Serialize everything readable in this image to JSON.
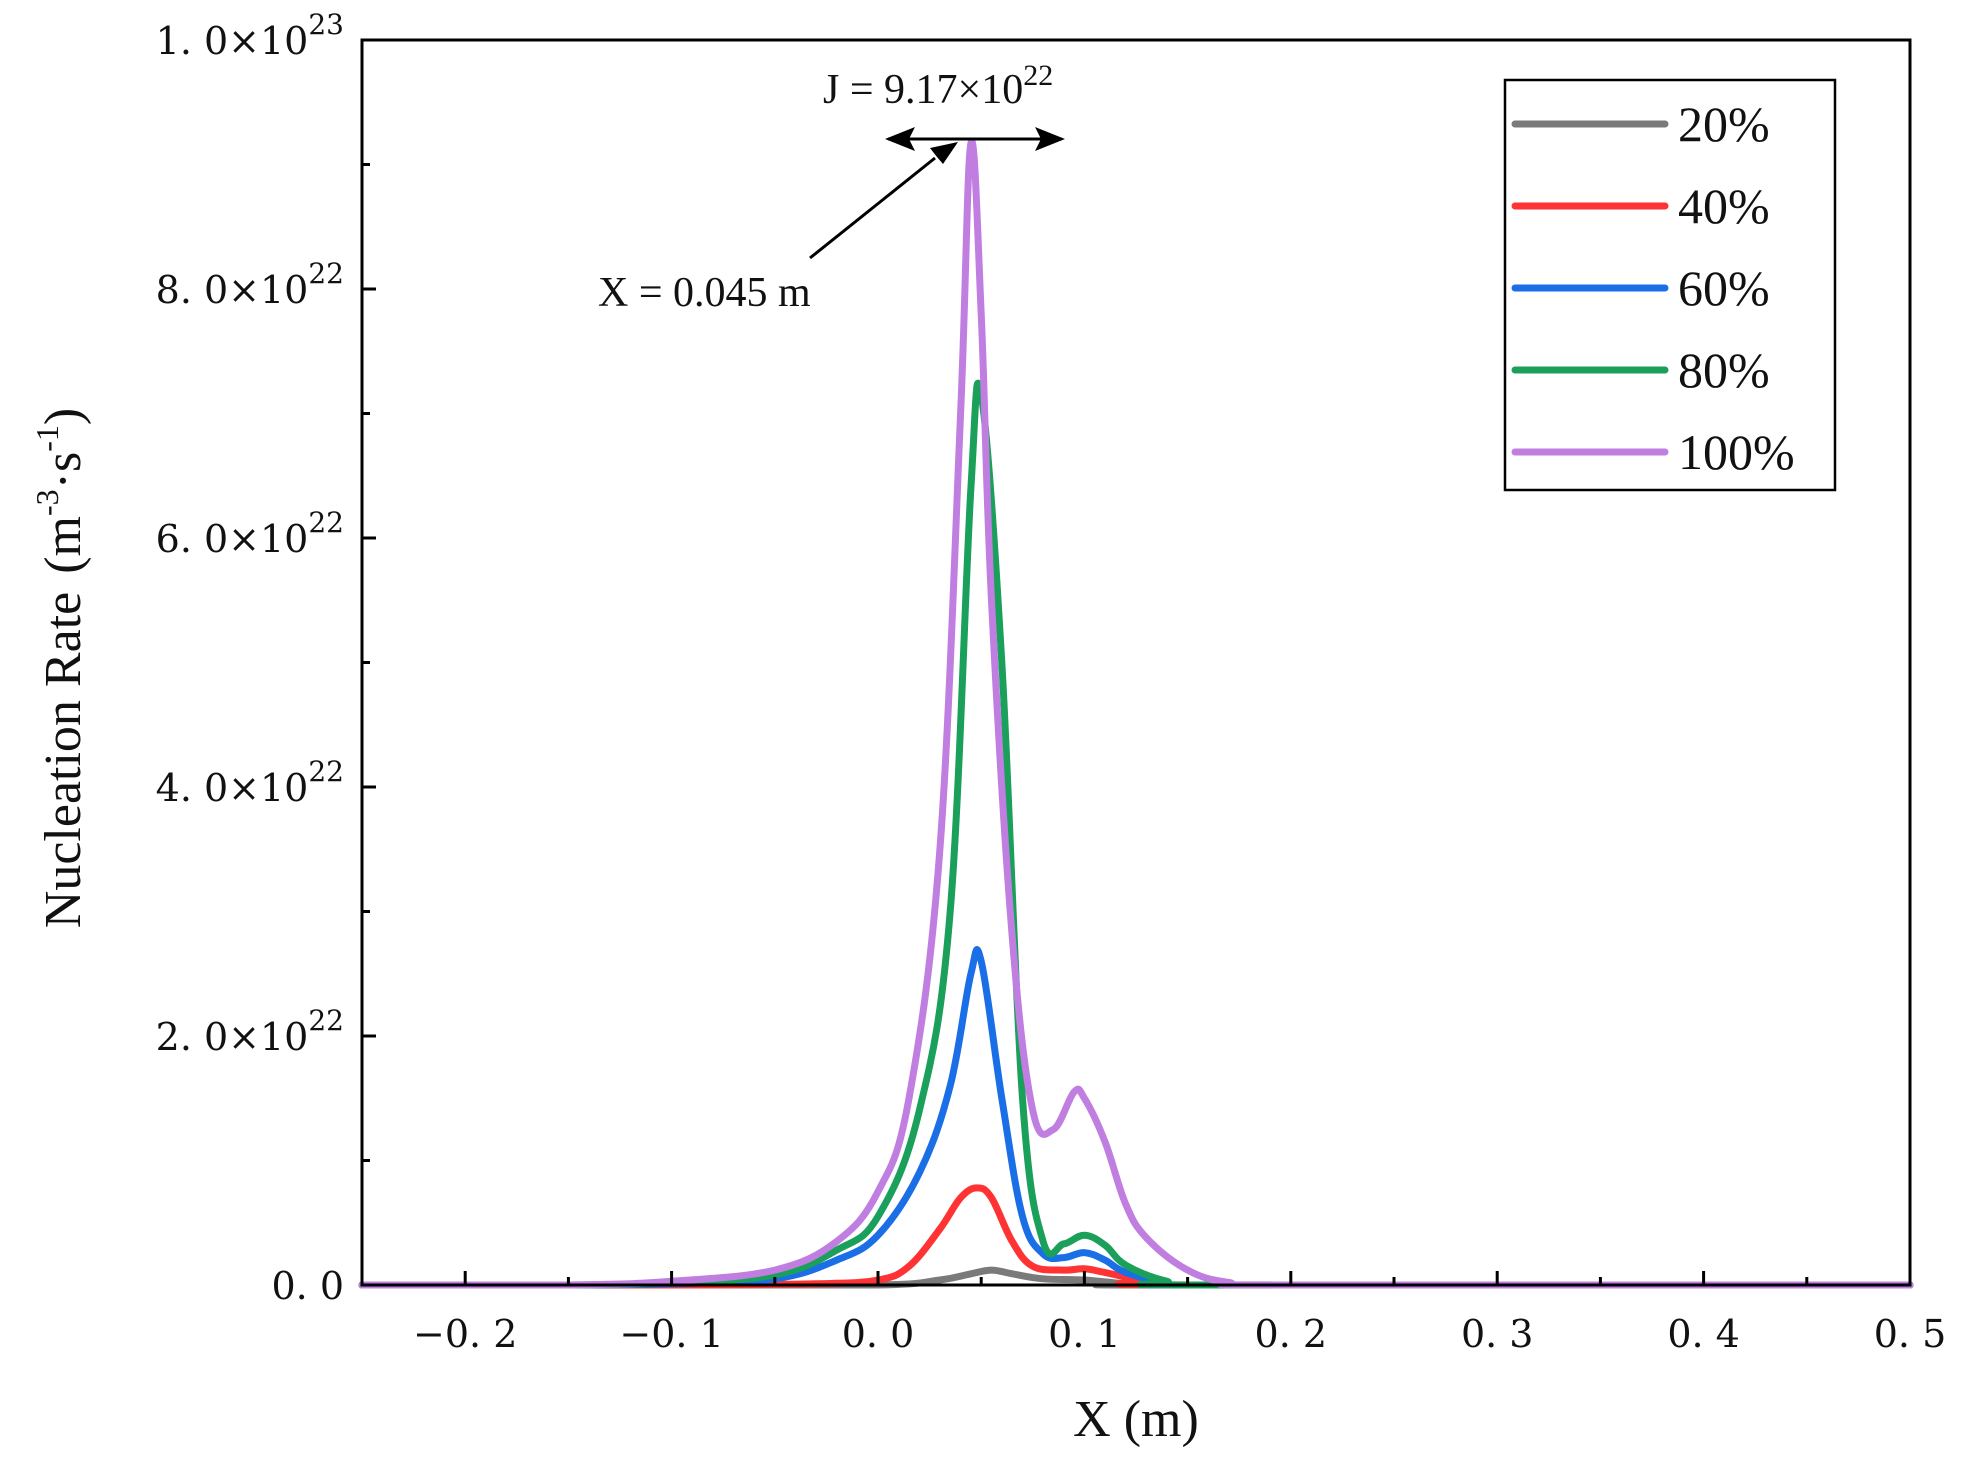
{
  "chart_data": {
    "type": "line",
    "xlabel": "X (m)",
    "ylabel_main": "Nucleation Rate",
    "ylabel_unit": {
      "open": "(m",
      "exp1": "-3",
      "dot": "·s",
      "exp2": "-1",
      "close": ")"
    },
    "xlim": [
      -0.25,
      0.5
    ],
    "ylim": [
      0,
      1e+23
    ],
    "x_ticks": [
      {
        "value": -0.2,
        "label": "−0. 2"
      },
      {
        "value": -0.1,
        "label": "−0. 1"
      },
      {
        "value": 0.0,
        "label": "0. 0"
      },
      {
        "value": 0.1,
        "label": "0. 1"
      },
      {
        "value": 0.2,
        "label": "0. 2"
      },
      {
        "value": 0.3,
        "label": "0. 3"
      },
      {
        "value": 0.4,
        "label": "0. 4"
      },
      {
        "value": 0.5,
        "label": "0. 5"
      }
    ],
    "y_ticks": [
      {
        "value": 0,
        "mant": "0. 0",
        "exp": ""
      },
      {
        "value": 2e+22,
        "mant": "2. 0×10",
        "exp": "22"
      },
      {
        "value": 4e+22,
        "mant": "4. 0×10",
        "exp": "22"
      },
      {
        "value": 6e+22,
        "mant": "6. 0×10",
        "exp": "22"
      },
      {
        "value": 8e+22,
        "mant": "8. 0×10",
        "exp": "22"
      },
      {
        "value": 1e+23,
        "mant": "1. 0×10",
        "exp": "23"
      }
    ],
    "annotations": {
      "peak_j": {
        "prefix": "J = 9.17×10",
        "exp": "22",
        "value": 9.17e+22,
        "x": 0.045
      },
      "peak_x": {
        "text": "X = 0.045 m",
        "x": 0.045
      }
    },
    "legend": {
      "placement": "top-right"
    },
    "series": [
      {
        "name": "20%",
        "color": "#7a7a7a",
        "x": [
          -0.25,
          -0.1,
          0.0,
          0.03,
          0.045,
          0.055,
          0.065,
          0.08,
          0.1,
          0.12,
          0.14,
          0.5
        ],
        "y": [
          0,
          0,
          0,
          4e+20,
          9e+20,
          1.2e+21,
          9e+20,
          5e+20,
          4e+20,
          1e+20,
          0,
          0
        ]
      },
      {
        "name": "40%",
        "color": "#ff3333",
        "x": [
          -0.25,
          -0.1,
          -0.03,
          0.0,
          0.015,
          0.03,
          0.04,
          0.048,
          0.055,
          0.065,
          0.075,
          0.09,
          0.1,
          0.11,
          0.13,
          0.15,
          0.5
        ],
        "y": [
          0,
          0,
          1e+20,
          4e+20,
          1.5e+21,
          4.5e+21,
          7e+21,
          7.8e+21,
          7e+21,
          3.5e+21,
          1.5e+21,
          1.2e+21,
          1.3e+21,
          1e+21,
          3e+20,
          0,
          0
        ]
      },
      {
        "name": "60%",
        "color": "#1a6ee6",
        "x": [
          -0.25,
          -0.15,
          -0.1,
          -0.05,
          -0.02,
          0.0,
          0.02,
          0.035,
          0.045,
          0.05,
          0.06,
          0.07,
          0.08,
          0.09,
          0.1,
          0.11,
          0.12,
          0.14,
          0.16,
          0.5
        ],
        "y": [
          0,
          0,
          1e+20,
          5e+20,
          2e+21,
          4e+21,
          9e+21,
          1.6e+22,
          2.5e+22,
          2.6e+22,
          1.5e+22,
          5.5e+21,
          2.5e+21,
          2.2e+21,
          2.6e+21,
          2e+21,
          1e+21,
          2e+20,
          0,
          0
        ]
      },
      {
        "name": "80%",
        "color": "#1aa05a",
        "x": [
          -0.25,
          -0.15,
          -0.1,
          -0.05,
          -0.02,
          0.0,
          0.02,
          0.035,
          0.045,
          0.05,
          0.06,
          0.07,
          0.08,
          0.09,
          0.1,
          0.11,
          0.12,
          0.14,
          0.16,
          0.5
        ],
        "y": [
          0,
          0,
          2e+20,
          8e+20,
          2.8e+21,
          5.5e+21,
          1.4e+22,
          3e+22,
          6.4e+22,
          7.15e+22,
          5e+22,
          1.5e+22,
          3.5e+21,
          3.3e+21,
          4e+21,
          3.2e+21,
          1.6e+21,
          3e+20,
          0,
          0
        ]
      },
      {
        "name": "100%",
        "color": "#bf7ee0",
        "x": [
          -0.25,
          -0.15,
          -0.1,
          -0.05,
          -0.02,
          0.0,
          0.015,
          0.03,
          0.04,
          0.045,
          0.05,
          0.055,
          0.065,
          0.075,
          0.085,
          0.095,
          0.1,
          0.11,
          0.12,
          0.13,
          0.15,
          0.17,
          0.2,
          0.5
        ],
        "y": [
          0,
          0,
          3e+20,
          1.2e+21,
          3.5e+21,
          7.5e+21,
          1.5e+22,
          3.5e+22,
          7e+22,
          9.17e+22,
          7.8e+22,
          5.5e+22,
          2.8e+22,
          1.4e+22,
          1.25e+22,
          1.55e+22,
          1.5e+22,
          1.15e+22,
          6.5e+21,
          3.8e+21,
          1.2e+21,
          2e+20,
          0,
          0
        ]
      }
    ]
  }
}
